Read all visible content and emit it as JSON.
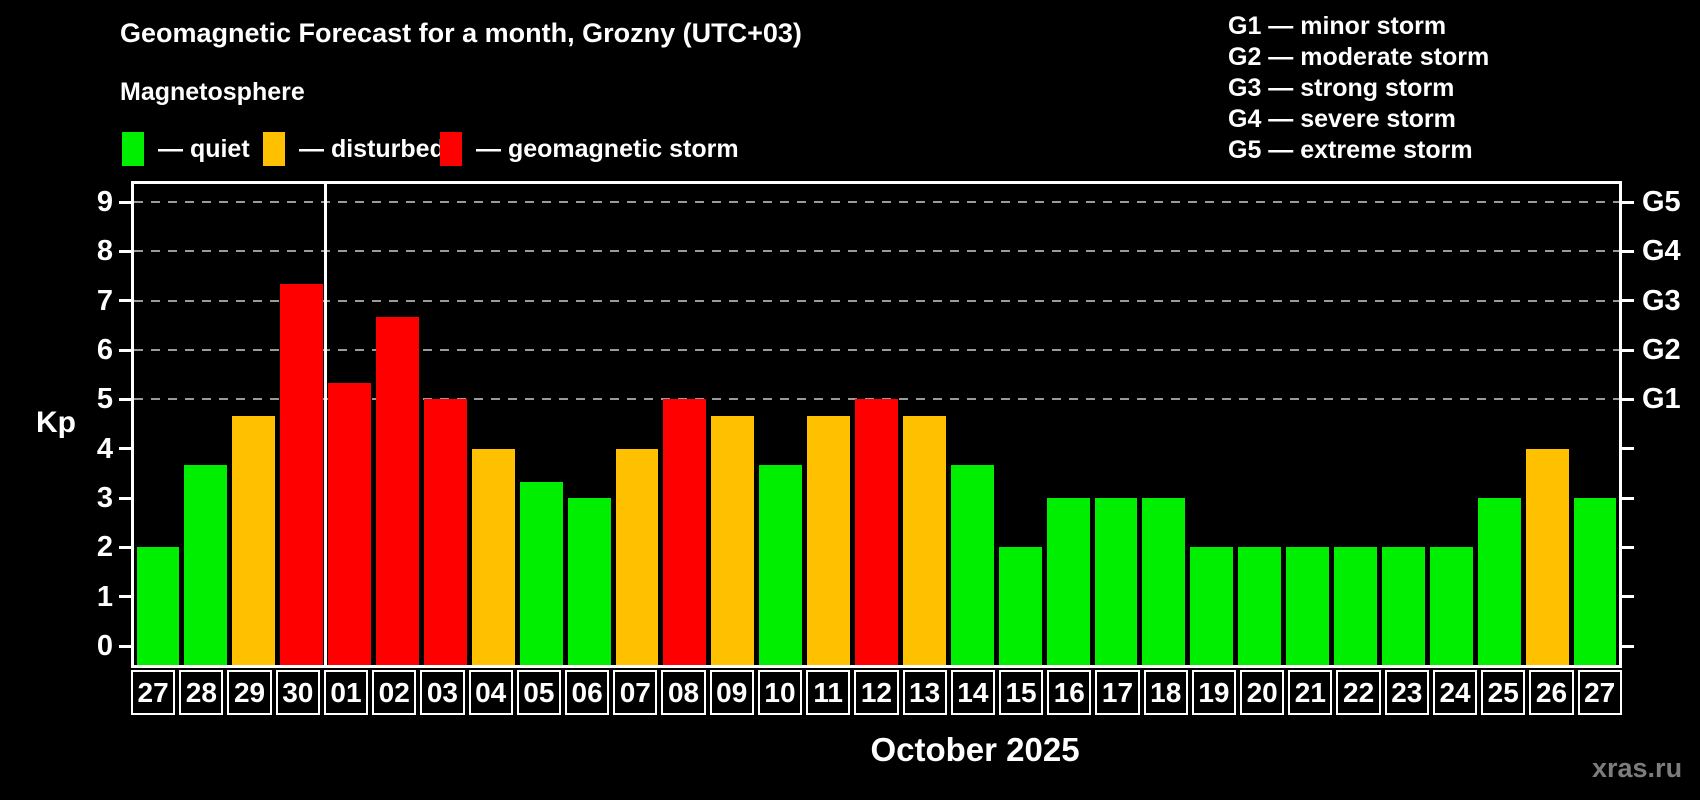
{
  "header": {
    "title": "Geomagnetic Forecast for a month, Grozny (UTC+03)",
    "subtitle": "Magnetosphere",
    "legend": [
      {
        "key": "quiet",
        "label": "— quiet",
        "color": "#00ee00"
      },
      {
        "key": "disturbed",
        "label": "— disturbed",
        "color": "#ffc000"
      },
      {
        "key": "storm",
        "label": "— geomagnetic storm",
        "color": "#ff0000"
      }
    ],
    "g_scale": [
      "G1 — minor storm",
      "G2 — moderate storm",
      "G3 — strong storm",
      "G4 — severe storm",
      "G5 — extreme storm"
    ]
  },
  "chart_data": {
    "type": "bar",
    "title": "Geomagnetic Forecast for a month, Grozny (UTC+03)",
    "ylabel": "Kp",
    "xlabel": "October 2025",
    "ylim": [
      0,
      9.4
    ],
    "yticks": [
      0,
      1,
      2,
      3,
      4,
      5,
      6,
      7,
      8,
      9
    ],
    "gridlines_at": [
      5,
      6,
      7,
      8,
      9
    ],
    "grid": "dashed, levels 5-9 only",
    "legend_position": "top-left",
    "right_axis_labels": [
      {
        "label": "G1",
        "kp": 5
      },
      {
        "label": "G2",
        "kp": 6
      },
      {
        "label": "G3",
        "kp": 7
      },
      {
        "label": "G4",
        "kp": 8
      },
      {
        "label": "G5",
        "kp": 9
      }
    ],
    "categories": [
      "27",
      "28",
      "29",
      "30",
      "01",
      "02",
      "03",
      "04",
      "05",
      "06",
      "07",
      "08",
      "09",
      "10",
      "11",
      "12",
      "13",
      "14",
      "15",
      "16",
      "17",
      "18",
      "19",
      "20",
      "21",
      "22",
      "23",
      "24",
      "25",
      "26",
      "27"
    ],
    "values": [
      2,
      3.67,
      4.67,
      7.33,
      5.33,
      6.67,
      5,
      4,
      3.33,
      3,
      4,
      5,
      4.67,
      3.67,
      4.67,
      5,
      4.67,
      3.67,
      2,
      3,
      3,
      3,
      2,
      2,
      2,
      2,
      2,
      2,
      3,
      4,
      3
    ],
    "levels": [
      "quiet",
      "quiet",
      "disturbed",
      "storm",
      "storm",
      "storm",
      "storm",
      "disturbed",
      "quiet",
      "quiet",
      "disturbed",
      "storm",
      "disturbed",
      "quiet",
      "disturbed",
      "storm",
      "disturbed",
      "quiet",
      "quiet",
      "quiet",
      "quiet",
      "quiet",
      "quiet",
      "quiet",
      "quiet",
      "quiet",
      "quiet",
      "quiet",
      "quiet",
      "disturbed",
      "quiet"
    ],
    "colors": {
      "quiet": "#00ee00",
      "disturbed": "#ffc000",
      "storm": "#ff0000"
    },
    "month_divider_after_index": 3
  },
  "footer": {
    "month_label": "October 2025",
    "watermark": "xras.ru"
  }
}
